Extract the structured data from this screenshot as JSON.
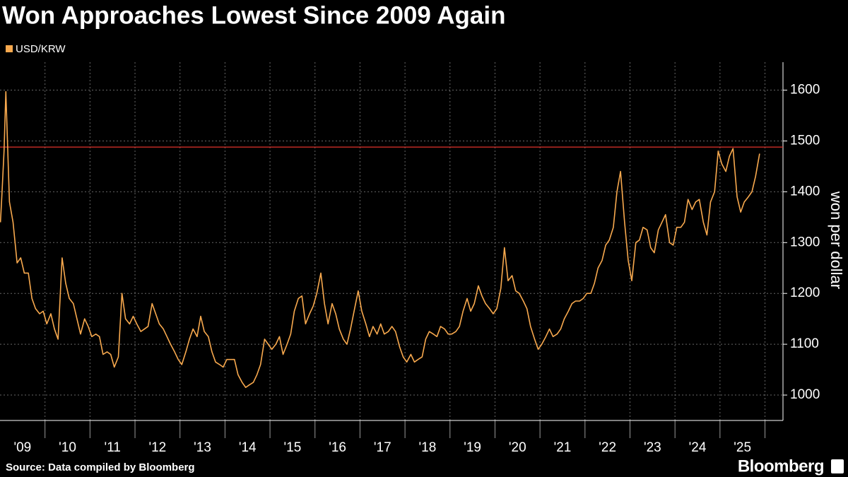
{
  "chart_data": {
    "type": "line",
    "title": "Won Approaches Lowest Since 2009 Again",
    "y_label": "won per dollar",
    "source": "Source: Data compiled by Bloomberg",
    "brand": "Bloomberg",
    "grid": true,
    "xlim": [
      2009,
      2026.4
    ],
    "ylim": [
      950,
      1655
    ],
    "yticks": [
      1000,
      1100,
      1200,
      1300,
      1400,
      1500,
      1600
    ],
    "xgrid": [
      2010,
      2011,
      2012,
      2013,
      2014,
      2015,
      2016,
      2017,
      2018,
      2019,
      2020,
      2021,
      2022,
      2023,
      2024,
      2025,
      2026
    ],
    "xticks": [
      {
        "value": 2009.5,
        "label": "'09"
      },
      {
        "value": 2010.5,
        "label": "'10"
      },
      {
        "value": 2011.5,
        "label": "'11"
      },
      {
        "value": 2012.5,
        "label": "'12"
      },
      {
        "value": 2013.5,
        "label": "'13"
      },
      {
        "value": 2014.5,
        "label": "'14"
      },
      {
        "value": 2015.5,
        "label": "'15"
      },
      {
        "value": 2016.5,
        "label": "'16"
      },
      {
        "value": 2017.5,
        "label": "'17"
      },
      {
        "value": 2018.5,
        "label": "'18"
      },
      {
        "value": 2019.5,
        "label": "'19"
      },
      {
        "value": 2020.5,
        "label": "'20"
      },
      {
        "value": 2021.5,
        "label": "'21"
      },
      {
        "value": 2022.5,
        "label": "'22"
      },
      {
        "value": 2023.5,
        "label": "'23"
      },
      {
        "value": 2024.5,
        "label": "'24"
      },
      {
        "value": 2025.5,
        "label": "'25"
      }
    ],
    "reference_line": {
      "value": 1488,
      "color": "#e0322a"
    },
    "x": [
      2009.01,
      2009.04,
      2009.09,
      2009.13,
      2009.21,
      2009.29,
      2009.38,
      2009.46,
      2009.54,
      2009.63,
      2009.71,
      2009.79,
      2009.88,
      2009.96,
      2010.04,
      2010.13,
      2010.21,
      2010.29,
      2010.38,
      2010.46,
      2010.54,
      2010.63,
      2010.71,
      2010.79,
      2010.88,
      2010.96,
      2011.04,
      2011.13,
      2011.21,
      2011.29,
      2011.38,
      2011.46,
      2011.54,
      2011.63,
      2011.71,
      2011.79,
      2011.88,
      2011.96,
      2012.04,
      2012.13,
      2012.21,
      2012.29,
      2012.38,
      2012.46,
      2012.54,
      2012.63,
      2012.71,
      2012.79,
      2012.88,
      2012.96,
      2013.04,
      2013.13,
      2013.21,
      2013.29,
      2013.38,
      2013.46,
      2013.54,
      2013.63,
      2013.71,
      2013.79,
      2013.88,
      2013.96,
      2014.04,
      2014.13,
      2014.21,
      2014.29,
      2014.38,
      2014.46,
      2014.54,
      2014.63,
      2014.71,
      2014.79,
      2014.88,
      2014.96,
      2015.04,
      2015.13,
      2015.21,
      2015.29,
      2015.38,
      2015.46,
      2015.54,
      2015.63,
      2015.71,
      2015.79,
      2015.88,
      2015.96,
      2016.04,
      2016.13,
      2016.21,
      2016.29,
      2016.38,
      2016.46,
      2016.54,
      2016.63,
      2016.71,
      2016.79,
      2016.88,
      2016.96,
      2017.04,
      2017.13,
      2017.21,
      2017.29,
      2017.38,
      2017.46,
      2017.54,
      2017.63,
      2017.71,
      2017.79,
      2017.88,
      2017.96,
      2018.04,
      2018.13,
      2018.21,
      2018.29,
      2018.38,
      2018.46,
      2018.54,
      2018.63,
      2018.71,
      2018.79,
      2018.88,
      2018.96,
      2019.04,
      2019.13,
      2019.21,
      2019.29,
      2019.38,
      2019.46,
      2019.54,
      2019.63,
      2019.71,
      2019.79,
      2019.88,
      2019.96,
      2020.04,
      2020.13,
      2020.21,
      2020.29,
      2020.38,
      2020.46,
      2020.54,
      2020.63,
      2020.71,
      2020.79,
      2020.88,
      2020.96,
      2021.04,
      2021.13,
      2021.21,
      2021.29,
      2021.38,
      2021.46,
      2021.54,
      2021.63,
      2021.71,
      2021.79,
      2021.88,
      2021.96,
      2022.04,
      2022.13,
      2022.21,
      2022.29,
      2022.38,
      2022.46,
      2022.54,
      2022.63,
      2022.71,
      2022.79,
      2022.88,
      2022.96,
      2023.04,
      2023.13,
      2023.21,
      2023.29,
      2023.38,
      2023.46,
      2023.54,
      2023.63,
      2023.71,
      2023.79,
      2023.88,
      2023.96,
      2024.04,
      2024.13,
      2024.21,
      2024.29,
      2024.38,
      2024.46,
      2024.54,
      2024.63,
      2024.71,
      2024.79,
      2024.88,
      2024.96,
      2025.04,
      2025.13,
      2025.21,
      2025.29,
      2025.38,
      2025.46,
      2025.54,
      2025.63,
      2025.71,
      2025.79,
      2025.88
    ],
    "series": [
      {
        "name": "USD/KRW",
        "color": "#f8a94e",
        "values": [
          1340,
          1390,
          1480,
          1597,
          1380,
          1340,
          1260,
          1270,
          1240,
          1240,
          1190,
          1170,
          1160,
          1165,
          1140,
          1160,
          1130,
          1110,
          1270,
          1220,
          1190,
          1180,
          1150,
          1120,
          1150,
          1135,
          1115,
          1120,
          1115,
          1080,
          1085,
          1080,
          1055,
          1075,
          1200,
          1150,
          1140,
          1155,
          1140,
          1125,
          1130,
          1135,
          1180,
          1160,
          1140,
          1130,
          1115,
          1100,
          1085,
          1070,
          1060,
          1085,
          1110,
          1130,
          1115,
          1155,
          1125,
          1115,
          1085,
          1065,
          1060,
          1055,
          1070,
          1070,
          1070,
          1040,
          1025,
          1015,
          1020,
          1025,
          1040,
          1060,
          1110,
          1100,
          1090,
          1100,
          1115,
          1080,
          1100,
          1120,
          1165,
          1190,
          1195,
          1140,
          1160,
          1175,
          1200,
          1240,
          1180,
          1140,
          1180,
          1160,
          1130,
          1110,
          1100,
          1130,
          1170,
          1205,
          1165,
          1140,
          1115,
          1135,
          1120,
          1140,
          1120,
          1125,
          1135,
          1125,
          1095,
          1075,
          1065,
          1080,
          1065,
          1070,
          1075,
          1110,
          1125,
          1120,
          1115,
          1135,
          1130,
          1120,
          1120,
          1125,
          1135,
          1165,
          1190,
          1165,
          1180,
          1215,
          1195,
          1180,
          1170,
          1160,
          1170,
          1210,
          1290,
          1225,
          1235,
          1205,
          1200,
          1185,
          1170,
          1135,
          1110,
          1090,
          1100,
          1115,
          1130,
          1115,
          1120,
          1130,
          1150,
          1165,
          1180,
          1185,
          1185,
          1190,
          1200,
          1200,
          1220,
          1250,
          1265,
          1295,
          1305,
          1330,
          1400,
          1440,
          1340,
          1265,
          1225,
          1300,
          1305,
          1330,
          1325,
          1290,
          1280,
          1325,
          1340,
          1355,
          1300,
          1295,
          1330,
          1330,
          1340,
          1385,
          1365,
          1380,
          1385,
          1340,
          1315,
          1380,
          1400,
          1480,
          1455,
          1440,
          1470,
          1485,
          1390,
          1360,
          1380,
          1390,
          1400,
          1430,
          1475
        ]
      }
    ]
  }
}
